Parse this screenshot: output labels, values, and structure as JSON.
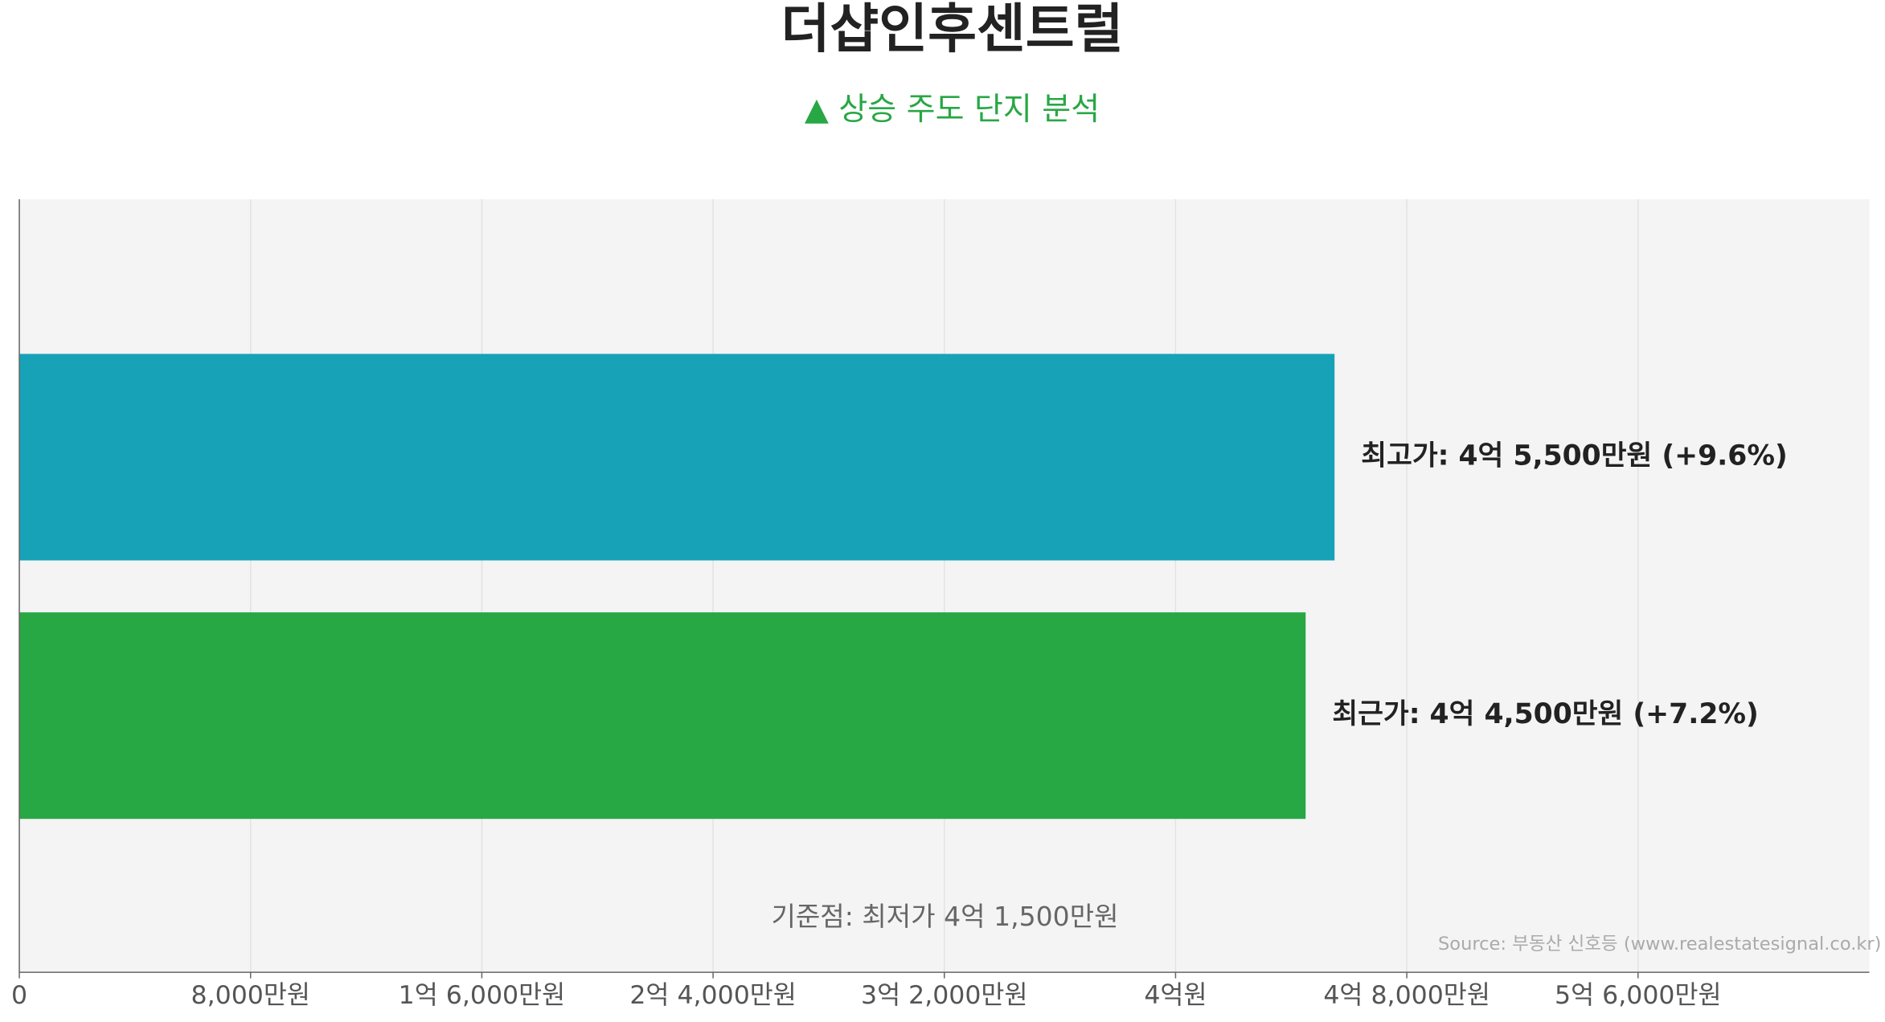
{
  "chart_data": {
    "type": "barh",
    "title": "더샵인후센트럴",
    "subtitle": "▲ 상승 주도 단지 분석",
    "values": [
      45500,
      44500
    ],
    "value_labels": [
      "최고가: 4억 5,500만원 (+9.6%)",
      "최근가: 4억 4,500만원 (+7.2%)"
    ],
    "colors": [
      "#17a2b8",
      "#28a745"
    ],
    "xlim": [
      0,
      64000
    ],
    "xticks": [
      0,
      {
        "value": 8000,
        "label": "8,000만원"
      },
      {
        "value": 16000,
        "label": "1억 6,000만원"
      },
      {
        "value": 24000,
        "label": "2억 4,000만원"
      },
      {
        "value": 32000,
        "label": "3억 2,000만원"
      },
      {
        "value": 40000,
        "label": "4억원"
      },
      {
        "value": 48000,
        "label": "4억 8,000만원"
      },
      {
        "value": 56000,
        "label": "5억 6,000만원"
      }
    ],
    "grid": true,
    "annotation": "기준점: 최저가 4억 1,500만원",
    "source": "Source: 부동산 신호등 (www.realestatesignal.co.kr)"
  }
}
